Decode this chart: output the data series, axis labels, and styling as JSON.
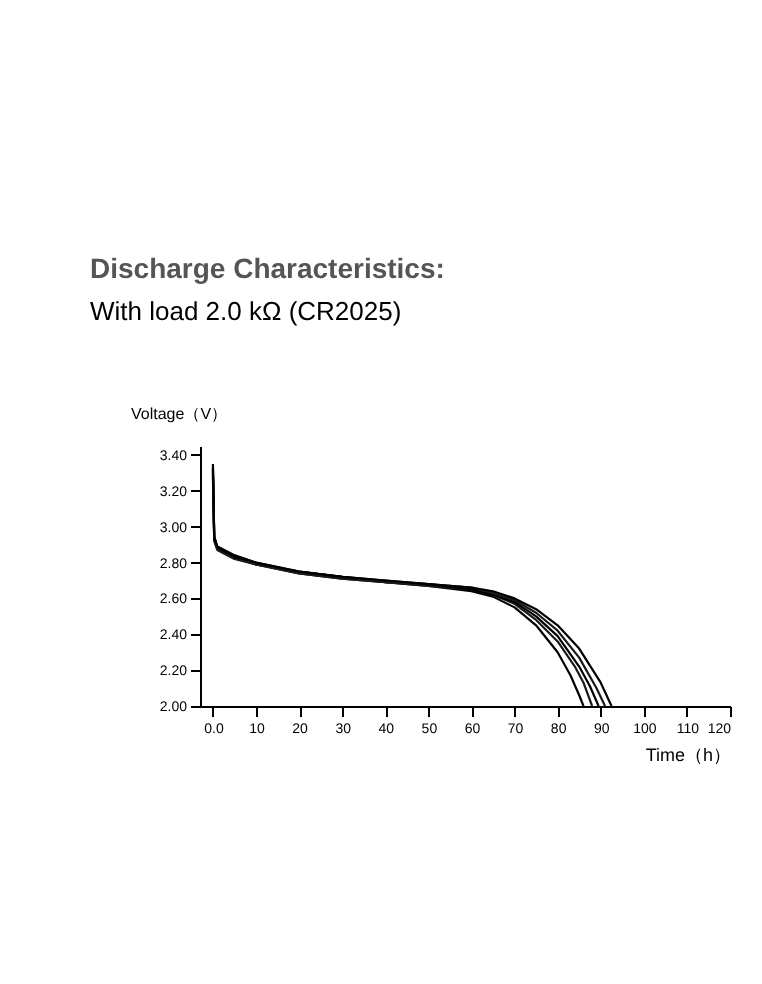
{
  "chart_data": {
    "type": "line",
    "title": "Discharge Characteristics:",
    "subtitle": "With load 2.0 kΩ (CR2025)",
    "xlabel": "Time（h）",
    "ylabel": "Voltage（V）",
    "xlim": [
      -3,
      120
    ],
    "ylim": [
      2.0,
      3.45
    ],
    "xticks": [
      {
        "value": 0,
        "label": "0.0"
      },
      10,
      20,
      30,
      40,
      50,
      60,
      70,
      80,
      90,
      100,
      110,
      120
    ],
    "yticks": [
      {
        "value": 2.0,
        "label": "2.00"
      },
      {
        "value": 2.2,
        "label": "2.20"
      },
      {
        "value": 2.4,
        "label": "2.40"
      },
      {
        "value": 2.6,
        "label": "2.60"
      },
      {
        "value": 2.8,
        "label": "2.80"
      },
      {
        "value": 3.0,
        "label": "3.00"
      },
      {
        "value": 3.2,
        "label": "3.20"
      },
      {
        "value": 3.4,
        "label": "3.40"
      }
    ],
    "grid": false,
    "legend": false,
    "marker": "none",
    "line_style": "solid",
    "series": [
      {
        "color": "#000000",
        "x": [
          0,
          0.3,
          1,
          5,
          10,
          20,
          30,
          40,
          50,
          60,
          65,
          70,
          75,
          80,
          83,
          85,
          86
        ],
        "values": [
          3.33,
          2.95,
          2.88,
          2.83,
          2.79,
          2.74,
          2.71,
          2.69,
          2.67,
          2.64,
          2.61,
          2.55,
          2.45,
          2.3,
          2.17,
          2.06,
          2.0
        ]
      },
      {
        "color": "#1a1a1a",
        "x": [
          0,
          0.3,
          1,
          5,
          10,
          20,
          30,
          40,
          50,
          60,
          65,
          70,
          75,
          80,
          84,
          86,
          88
        ],
        "values": [
          3.3,
          2.94,
          2.89,
          2.84,
          2.8,
          2.75,
          2.72,
          2.69,
          2.67,
          2.65,
          2.62,
          2.57,
          2.48,
          2.36,
          2.22,
          2.13,
          2.0
        ]
      },
      {
        "color": "#000000",
        "x": [
          0,
          0.3,
          1,
          5,
          10,
          20,
          30,
          40,
          50,
          60,
          65,
          70,
          75,
          80,
          85,
          87.5,
          89.5
        ],
        "values": [
          3.35,
          2.93,
          2.88,
          2.83,
          2.79,
          2.75,
          2.72,
          2.7,
          2.68,
          2.65,
          2.62,
          2.58,
          2.5,
          2.39,
          2.22,
          2.11,
          2.0
        ]
      },
      {
        "color": "#1a1a1a",
        "x": [
          0,
          0.3,
          1,
          5,
          10,
          20,
          30,
          40,
          50,
          60,
          65,
          70,
          75,
          80,
          85,
          89,
          91
        ],
        "values": [
          3.28,
          2.92,
          2.87,
          2.82,
          2.79,
          2.74,
          2.71,
          2.69,
          2.68,
          2.66,
          2.63,
          2.59,
          2.52,
          2.42,
          2.27,
          2.1,
          2.0
        ]
      },
      {
        "color": "#000000",
        "x": [
          0,
          0.3,
          1,
          5,
          10,
          20,
          30,
          40,
          50,
          60,
          65,
          70,
          75,
          80,
          85,
          90,
          92.5
        ],
        "values": [
          3.32,
          2.94,
          2.89,
          2.84,
          2.8,
          2.75,
          2.72,
          2.7,
          2.68,
          2.66,
          2.64,
          2.6,
          2.54,
          2.45,
          2.32,
          2.13,
          2.0
        ]
      }
    ]
  }
}
